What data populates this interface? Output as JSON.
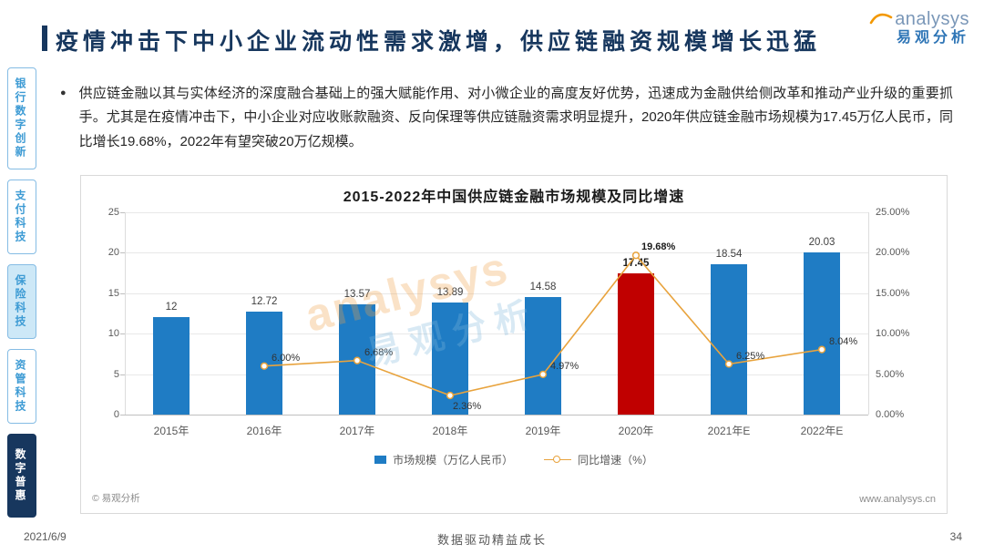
{
  "page": {
    "date": "2021/6/9",
    "footer_center": "数据驱动精益成长",
    "page_number": "34"
  },
  "header": {
    "title": "疫情冲击下中小企业流动性需求激增，供应链融资规模增长迅猛",
    "logo_brand": "analysys",
    "logo_sub": "易观分析"
  },
  "sidebar": {
    "items": [
      {
        "label": "银行数字创新",
        "state": "normal"
      },
      {
        "label": "支付科技",
        "state": "normal"
      },
      {
        "label": "保险科技",
        "state": "highlight"
      },
      {
        "label": "资管科技",
        "state": "normal"
      },
      {
        "label": "数字普惠",
        "state": "active"
      }
    ]
  },
  "bullet": {
    "text": "供应链金融以其与实体经济的深度融合基础上的强大赋能作用、对小微企业的高度友好优势，迅速成为金融供给侧改革和推动产业升级的重要抓手。尤其是在疫情冲击下，中小企业对应收账款融资、反向保理等供应链融资需求明显提升，2020年供应链金融市场规模为17.45万亿人民币，同比增长19.68%，2022年有望突破20万亿规模。"
  },
  "watermark": {
    "line1": "analysys",
    "line2": "易观分析"
  },
  "chart_data": {
    "type": "bar+line",
    "title": "2015-2022年中国供应链金融市场规模及同比增速",
    "categories": [
      "2015年",
      "2016年",
      "2017年",
      "2018年",
      "2019年",
      "2020年",
      "2021年E",
      "2022年E"
    ],
    "series": [
      {
        "name": "市场规模（万亿人民币）",
        "type": "bar",
        "values": [
          12,
          12.72,
          13.57,
          13.89,
          14.58,
          17.45,
          18.54,
          20.03
        ]
      },
      {
        "name": "同比增速（%）",
        "type": "line",
        "values": [
          null,
          6.0,
          6.68,
          2.36,
          4.97,
          19.68,
          6.25,
          8.04
        ]
      }
    ],
    "bar_labels": [
      "12",
      "12.72",
      "13.57",
      "13.89",
      "14.58",
      "17.45",
      "18.54",
      "20.03"
    ],
    "line_labels": [
      "",
      "6.00%",
      "6.68%",
      "2.36%",
      "4.97%",
      "19.68%",
      "6.25%",
      "8.04%"
    ],
    "highlight_index": 5,
    "left_axis": {
      "min": 0,
      "max": 25,
      "ticks": [
        "0",
        "5",
        "10",
        "15",
        "20",
        "25"
      ]
    },
    "right_axis": {
      "min": 0,
      "max": 25,
      "ticks": [
        "0.00%",
        "5.00%",
        "10.00%",
        "15.00%",
        "20.00%",
        "25.00%"
      ]
    },
    "colors": {
      "bar": "#1F7CC4",
      "bar_highlight": "#C00000",
      "line": "#E8A33D"
    },
    "legend": [
      "市场规模（万亿人民币）",
      "同比增速（%）"
    ],
    "grid": true,
    "legend_position": "bottom",
    "copyright": "© 易观分析",
    "website": "www.analysys.cn"
  }
}
